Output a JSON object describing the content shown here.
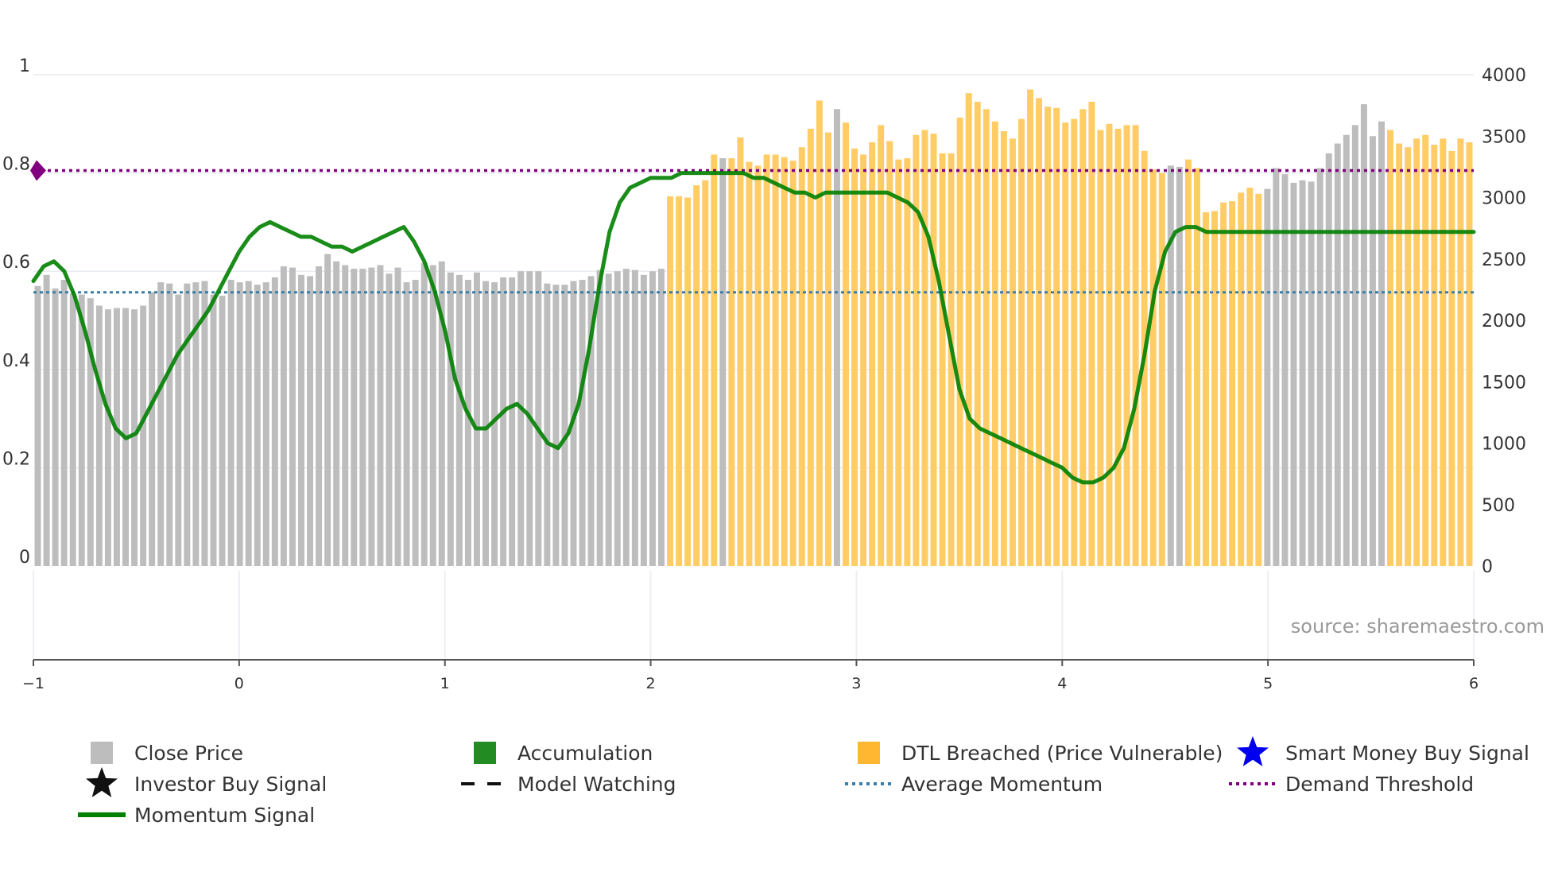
{
  "chart_data": {
    "type": "bar",
    "title": "",
    "source_label": "source: sharemaestro.com",
    "left_axis": {
      "ylim": [
        0,
        1
      ],
      "ticks": [
        0,
        0.2,
        0.4,
        0.6,
        0.8,
        1
      ],
      "tick_labels": [
        "0",
        "0.2",
        "0.4",
        "0.6",
        "0.8",
        "1"
      ]
    },
    "right_axis": {
      "ylim": [
        0,
        4000
      ],
      "ticks": [
        0,
        500,
        1000,
        1500,
        2000,
        2500,
        3000,
        3500,
        4000
      ],
      "tick_labels": [
        "0",
        "500",
        "1000",
        "1500",
        "2000",
        "2500",
        "3000",
        "3500",
        "4000"
      ]
    },
    "x_axis": {
      "xlim": [
        -1,
        6
      ],
      "ticks": [
        -1,
        0,
        1,
        2,
        3,
        4,
        5,
        6
      ],
      "tick_labels": [
        "−1",
        "0",
        "1",
        "2",
        "3",
        "4",
        "5",
        "6"
      ]
    },
    "series": [
      {
        "name": "Close Price",
        "type": "bar",
        "axis": "right",
        "color_normal": "#bdbdbd",
        "color_breached": "#ffcc66",
        "values": [
          2280,
          2370,
          2260,
          2330,
          2220,
          2210,
          2180,
          2120,
          2090,
          2100,
          2100,
          2090,
          2120,
          2230,
          2310,
          2300,
          2210,
          2300,
          2310,
          2320,
          2210,
          2200,
          2330,
          2310,
          2320,
          2290,
          2310,
          2350,
          2440,
          2430,
          2370,
          2360,
          2440,
          2540,
          2480,
          2450,
          2420,
          2420,
          2430,
          2450,
          2380,
          2430,
          2310,
          2330,
          2470,
          2450,
          2480,
          2390,
          2370,
          2330,
          2390,
          2320,
          2310,
          2350,
          2350,
          2400,
          2400,
          2400,
          2300,
          2290,
          2290,
          2320,
          2330,
          2360,
          2410,
          2380,
          2400,
          2420,
          2410,
          2370,
          2400,
          2420,
          3010,
          3010,
          3000,
          3100,
          3140,
          3350,
          3320,
          3320,
          3490,
          3290,
          3260,
          3350,
          3350,
          3330,
          3300,
          3410,
          3560,
          3790,
          3530,
          3720,
          3610,
          3400,
          3350,
          3450,
          3590,
          3460,
          3310,
          3320,
          3510,
          3550,
          3520,
          3360,
          3360,
          3650,
          3850,
          3780,
          3720,
          3620,
          3540,
          3480,
          3640,
          3880,
          3810,
          3740,
          3730,
          3610,
          3640,
          3720,
          3780,
          3550,
          3600,
          3560,
          3590,
          3590,
          3380,
          3230,
          3200,
          3260,
          3250,
          3310,
          3240,
          2880,
          2890,
          2960,
          2970,
          3040,
          3080,
          3030,
          3070,
          3240,
          3190,
          3120,
          3140,
          3130,
          3240,
          3360,
          3440,
          3510,
          3590,
          3760,
          3500,
          3620,
          3550,
          3440,
          3410,
          3480,
          3510,
          3430,
          3480,
          3380,
          3480,
          3450
        ],
        "breached_ranges": [
          [
            72,
            77
          ],
          [
            79,
            90
          ],
          [
            92,
            128
          ],
          [
            131,
            139
          ],
          [
            154,
            166
          ]
        ]
      },
      {
        "name": "Momentum Signal",
        "type": "line",
        "axis": "left",
        "color": "#008000",
        "x": [
          -1.0,
          -0.95,
          -0.9,
          -0.85,
          -0.8,
          -0.75,
          -0.7,
          -0.65,
          -0.6,
          -0.55,
          -0.5,
          -0.45,
          -0.4,
          -0.35,
          -0.3,
          -0.25,
          -0.2,
          -0.15,
          -0.1,
          -0.05,
          0.0,
          0.05,
          0.1,
          0.15,
          0.2,
          0.25,
          0.3,
          0.35,
          0.4,
          0.45,
          0.5,
          0.55,
          0.6,
          0.65,
          0.7,
          0.75,
          0.8,
          0.85,
          0.9,
          0.95,
          1.0,
          1.05,
          1.1,
          1.15,
          1.2,
          1.25,
          1.3,
          1.35,
          1.4,
          1.45,
          1.5,
          1.55,
          1.6,
          1.65,
          1.7,
          1.75,
          1.8,
          1.85,
          1.9,
          1.95,
          2.0,
          2.05,
          2.1,
          2.15,
          2.2,
          2.25,
          2.3,
          2.35,
          2.4,
          2.45,
          2.5,
          2.55,
          2.6,
          2.65,
          2.7,
          2.75,
          2.8,
          2.85,
          2.9,
          2.95,
          3.0,
          3.05,
          3.1,
          3.15,
          3.2,
          3.25,
          3.3,
          3.35,
          3.4,
          3.45,
          3.5,
          3.55,
          3.6,
          3.65,
          3.7,
          3.75,
          3.8,
          3.85,
          3.9,
          3.95,
          4.0,
          4.05,
          4.1,
          4.15,
          4.2,
          4.25,
          4.3,
          4.35,
          4.4,
          4.45,
          4.5,
          4.55,
          4.6,
          4.65,
          4.7,
          4.75,
          4.8,
          4.85,
          4.9,
          4.95,
          5.0,
          5.05,
          5.1,
          5.15,
          5.2,
          5.25,
          5.3,
          5.35,
          5.4,
          5.45,
          5.5,
          5.55,
          5.6,
          5.65,
          5.7,
          5.75,
          5.8,
          5.85,
          5.9,
          5.95,
          6.0
        ],
        "values": [
          0.58,
          0.61,
          0.62,
          0.6,
          0.55,
          0.48,
          0.4,
          0.33,
          0.28,
          0.26,
          0.27,
          0.31,
          0.35,
          0.39,
          0.43,
          0.46,
          0.49,
          0.52,
          0.56,
          0.6,
          0.64,
          0.67,
          0.69,
          0.7,
          0.69,
          0.68,
          0.67,
          0.67,
          0.66,
          0.65,
          0.65,
          0.64,
          0.65,
          0.66,
          0.67,
          0.68,
          0.69,
          0.66,
          0.62,
          0.56,
          0.48,
          0.38,
          0.32,
          0.28,
          0.28,
          0.3,
          0.32,
          0.33,
          0.31,
          0.28,
          0.25,
          0.24,
          0.27,
          0.33,
          0.44,
          0.57,
          0.68,
          0.74,
          0.77,
          0.78,
          0.79,
          0.79,
          0.79,
          0.8,
          0.8,
          0.8,
          0.8,
          0.8,
          0.8,
          0.8,
          0.79,
          0.79,
          0.78,
          0.77,
          0.76,
          0.76,
          0.75,
          0.76,
          0.76,
          0.76,
          0.76,
          0.76,
          0.76,
          0.76,
          0.75,
          0.74,
          0.72,
          0.67,
          0.58,
          0.47,
          0.36,
          0.3,
          0.28,
          0.27,
          0.26,
          0.25,
          0.24,
          0.23,
          0.22,
          0.21,
          0.2,
          0.18,
          0.17,
          0.17,
          0.18,
          0.2,
          0.24,
          0.32,
          0.43,
          0.56,
          0.64,
          0.68,
          0.69,
          0.69,
          0.68,
          0.68,
          0.68,
          0.68,
          0.68,
          0.68,
          0.68,
          0.68,
          0.68,
          0.68,
          0.68,
          0.68,
          0.68,
          0.68,
          0.68,
          0.68,
          0.68,
          0.68,
          0.68,
          0.68,
          0.68,
          0.68,
          0.68,
          0.68,
          0.68,
          0.68,
          0.68
        ]
      },
      {
        "name": "Average Momentum",
        "type": "hline",
        "axis": "left",
        "value": 0.557,
        "color": "#3a7fa8"
      },
      {
        "name": "Demand Threshold",
        "type": "hline",
        "axis": "left",
        "value": 0.805,
        "color": "#800080"
      }
    ],
    "legend": {
      "placement": "bottom",
      "items": [
        {
          "label": "Close Price",
          "symbol": "square",
          "color": "#bdbdbd"
        },
        {
          "label": "Accumulation",
          "symbol": "square",
          "color": "#228b22"
        },
        {
          "label": "DTL Breached (Price Vulnerable)",
          "symbol": "square",
          "color": "#ffb732"
        },
        {
          "label": "Smart Money Buy Signal",
          "symbol": "star",
          "color": "#0000ee"
        },
        {
          "label": "Investor Buy Signal",
          "symbol": "star",
          "color": "#111111"
        },
        {
          "label": "Model Watching",
          "symbol": "dash",
          "color": "#111111"
        },
        {
          "label": "Average Momentum",
          "symbol": "dot",
          "color": "#3a7fa8"
        },
        {
          "label": "Demand Threshold",
          "symbol": "dot",
          "color": "#800080"
        },
        {
          "label": "Momentum Signal",
          "symbol": "line",
          "color": "#008000"
        }
      ]
    }
  }
}
